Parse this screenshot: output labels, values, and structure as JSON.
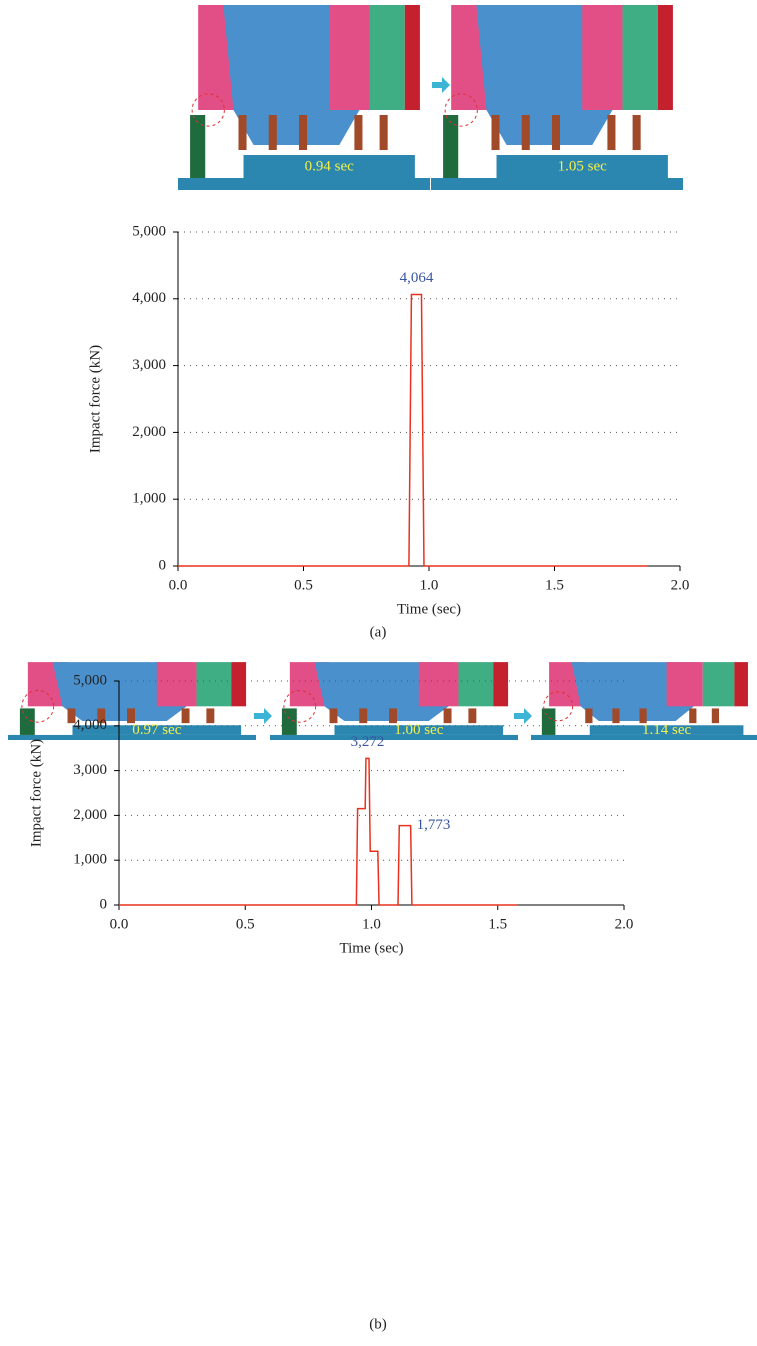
{
  "chart_data": [
    {
      "type": "line",
      "xlabel": "Time (sec)",
      "ylabel": "Impact force (kN)",
      "xlim": [
        0,
        2
      ],
      "ylim": [
        0,
        5000
      ],
      "xticks": [
        {
          "value": 0,
          "label": "0.0"
        },
        0.5,
        {
          "value": 1,
          "label": "1.0"
        },
        1.5,
        {
          "value": 2,
          "label": "2.0"
        }
      ],
      "yticks": [
        0,
        {
          "value": 1000,
          "label": "1,000"
        },
        {
          "value": 2000,
          "label": "2,000"
        },
        {
          "value": 3000,
          "label": "3,000"
        },
        {
          "value": 4000,
          "label": "4,000"
        },
        {
          "value": 5000,
          "label": "5,000"
        }
      ],
      "grid": true,
      "series": [
        {
          "color": "#e8321e",
          "x": [
            0,
            0.92,
            0.93,
            0.97,
            0.98,
            1.87
          ],
          "values": [
            0,
            0,
            4064,
            4064,
            0,
            0
          ]
        }
      ],
      "annotations": [
        {
          "label": "4,064",
          "value": 4064
        }
      ]
    },
    {
      "type": "line",
      "xlabel": "Time (sec)",
      "ylabel": "Impact force (kN)",
      "xlim": [
        0,
        2
      ],
      "ylim": [
        0,
        5000
      ],
      "xticks": [
        {
          "value": 0,
          "label": "0.0"
        },
        0.5,
        {
          "value": 1,
          "label": "1.0"
        },
        1.5,
        {
          "value": 2,
          "label": "2.0"
        }
      ],
      "yticks": [
        0,
        {
          "value": 1000,
          "label": "1,000"
        },
        {
          "value": 2000,
          "label": "2,000"
        },
        {
          "value": 3000,
          "label": "3,000"
        },
        {
          "value": 4000,
          "label": "4,000"
        },
        {
          "value": 5000,
          "label": "5,000"
        }
      ],
      "grid": true,
      "series": [
        {
          "color": "#e8321e",
          "x": [
            0,
            0.94,
            0.945,
            0.975,
            0.978,
            0.99,
            0.995,
            1.025,
            1.03,
            1.105,
            1.11,
            1.155,
            1.16,
            1.58
          ],
          "values": [
            0,
            0,
            2150,
            2150,
            3272,
            3272,
            1200,
            1200,
            0,
            0,
            1773,
            1773,
            0,
            0
          ]
        }
      ],
      "annotations": [
        {
          "label": "3,272",
          "value": 3272
        },
        {
          "label": "1,773",
          "value": 1773
        }
      ]
    }
  ],
  "figure": {
    "panels": [
      {
        "frames": [
          "0.94 sec",
          "1.05 sec"
        ],
        "caption": "(a)"
      },
      {
        "frames": [
          "0.97 sec",
          "1.00 sec",
          "1.14 sec"
        ],
        "caption": "(b)"
      }
    ]
  }
}
